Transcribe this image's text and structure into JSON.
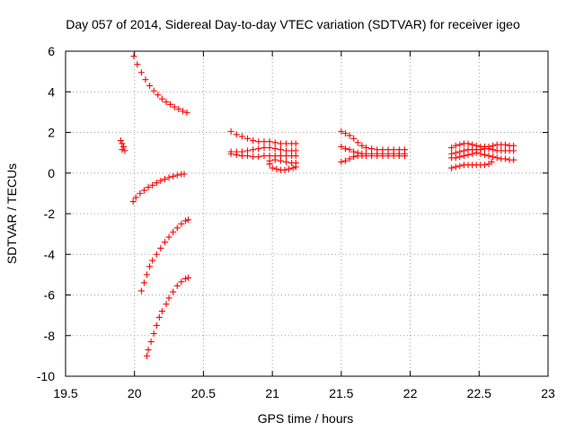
{
  "chart_data": {
    "type": "scatter",
    "title": "Day 057 of 2014, Sidereal Day-to-day VTEC variation (SDTVAR) for receiver igeo",
    "xlabel": "GPS time / hours",
    "ylabel": "SDTVAR / TECUs",
    "xlim": [
      19.5,
      23
    ],
    "ylim": [
      -10,
      6
    ],
    "xticks": [
      19.5,
      20,
      20.5,
      21,
      21.5,
      22,
      22.5,
      23
    ],
    "xtick_labels": [
      "19.5",
      "20",
      "20.5",
      "21",
      "21.5",
      "22",
      "22.5",
      "23"
    ],
    "yticks": [
      -10,
      -8,
      -6,
      -4,
      -2,
      0,
      2,
      4,
      6
    ],
    "ytick_labels": [
      "-10",
      "-8",
      "-6",
      "-4",
      "-2",
      "0",
      "2",
      "4",
      "6"
    ],
    "grid": true,
    "marker": "+",
    "series_color": "#ff0000",
    "series": [
      {
        "name": "arc-upper-20",
        "points": [
          [
            19.995,
            5.75
          ],
          [
            20.02,
            5.35
          ],
          [
            20.05,
            4.95
          ],
          [
            20.08,
            4.6
          ],
          [
            20.11,
            4.3
          ],
          [
            20.14,
            4.05
          ],
          [
            20.17,
            3.85
          ],
          [
            20.2,
            3.65
          ],
          [
            20.23,
            3.5
          ],
          [
            20.26,
            3.38
          ],
          [
            20.29,
            3.25
          ],
          [
            20.32,
            3.15
          ],
          [
            20.35,
            3.05
          ],
          [
            20.38,
            2.98
          ]
        ]
      },
      {
        "name": "short-19.9",
        "points": [
          [
            19.9,
            1.6
          ],
          [
            19.91,
            1.45
          ],
          [
            19.92,
            1.3
          ],
          [
            19.91,
            1.15
          ],
          [
            19.93,
            1.1
          ]
        ]
      },
      {
        "name": "arc-minus1",
        "points": [
          [
            19.99,
            -1.4
          ],
          [
            20.01,
            -1.2
          ],
          [
            20.04,
            -1.0
          ],
          [
            20.07,
            -0.85
          ],
          [
            20.1,
            -0.7
          ],
          [
            20.13,
            -0.6
          ],
          [
            20.16,
            -0.48
          ],
          [
            20.19,
            -0.38
          ],
          [
            20.22,
            -0.3
          ],
          [
            20.25,
            -0.22
          ],
          [
            20.28,
            -0.16
          ],
          [
            20.31,
            -0.1
          ],
          [
            20.34,
            -0.05
          ],
          [
            20.36,
            -0.05
          ]
        ]
      },
      {
        "name": "arc-minus4",
        "points": [
          [
            20.05,
            -5.8
          ],
          [
            20.07,
            -5.4
          ],
          [
            20.09,
            -5.0
          ],
          [
            20.11,
            -4.6
          ],
          [
            20.13,
            -4.3
          ],
          [
            20.16,
            -4.0
          ],
          [
            20.19,
            -3.7
          ],
          [
            20.22,
            -3.4
          ],
          [
            20.25,
            -3.15
          ],
          [
            20.28,
            -2.9
          ],
          [
            20.31,
            -2.7
          ],
          [
            20.34,
            -2.5
          ],
          [
            20.37,
            -2.35
          ],
          [
            20.39,
            -2.3
          ]
        ]
      },
      {
        "name": "arc-minus7",
        "points": [
          [
            20.09,
            -9.0
          ],
          [
            20.1,
            -8.7
          ],
          [
            20.12,
            -8.3
          ],
          [
            20.14,
            -7.9
          ],
          [
            20.16,
            -7.5
          ],
          [
            20.18,
            -7.1
          ],
          [
            20.2,
            -6.8
          ],
          [
            20.23,
            -6.45
          ],
          [
            20.25,
            -6.15
          ],
          [
            20.28,
            -5.85
          ],
          [
            20.31,
            -5.55
          ],
          [
            20.34,
            -5.35
          ],
          [
            20.37,
            -5.2
          ],
          [
            20.39,
            -5.15
          ]
        ]
      },
      {
        "name": "block-21-top",
        "points": [
          [
            20.7,
            2.05
          ],
          [
            20.74,
            1.9
          ],
          [
            20.78,
            1.8
          ],
          [
            20.82,
            1.7
          ],
          [
            20.86,
            1.6
          ],
          [
            20.9,
            1.55
          ],
          [
            20.94,
            1.55
          ],
          [
            20.98,
            1.55
          ],
          [
            21.02,
            1.5
          ],
          [
            21.06,
            1.45
          ],
          [
            21.1,
            1.45
          ],
          [
            21.14,
            1.45
          ],
          [
            21.17,
            1.45
          ]
        ]
      },
      {
        "name": "block-21-upper-mid",
        "points": [
          [
            20.7,
            1.05
          ],
          [
            20.74,
            1.05
          ],
          [
            20.78,
            1.05
          ],
          [
            20.82,
            1.1
          ],
          [
            20.86,
            1.15
          ],
          [
            20.9,
            1.2
          ],
          [
            20.94,
            1.25
          ],
          [
            20.98,
            1.25
          ],
          [
            21.02,
            1.2
          ],
          [
            21.06,
            1.15
          ],
          [
            21.1,
            1.1
          ],
          [
            21.14,
            1.1
          ],
          [
            21.17,
            1.1
          ]
        ]
      },
      {
        "name": "block-21-mid",
        "points": [
          [
            20.7,
            0.95
          ],
          [
            20.74,
            0.9
          ],
          [
            20.78,
            0.85
          ],
          [
            20.82,
            0.85
          ],
          [
            20.86,
            0.8
          ],
          [
            20.9,
            0.8
          ],
          [
            20.94,
            0.85
          ],
          [
            20.98,
            0.85
          ],
          [
            21.02,
            0.85
          ],
          [
            21.06,
            0.85
          ],
          [
            21.1,
            0.85
          ],
          [
            21.14,
            0.85
          ],
          [
            21.17,
            0.85
          ]
        ]
      },
      {
        "name": "block-21-lower",
        "points": [
          [
            20.98,
            0.45
          ],
          [
            21.0,
            0.25
          ],
          [
            21.03,
            0.2
          ],
          [
            21.06,
            0.15
          ],
          [
            21.09,
            0.15
          ],
          [
            21.12,
            0.2
          ],
          [
            21.15,
            0.25
          ],
          [
            21.17,
            0.3
          ]
        ]
      },
      {
        "name": "block-21-low-mid",
        "points": [
          [
            20.98,
            0.6
          ],
          [
            21.02,
            0.65
          ],
          [
            21.06,
            0.6
          ],
          [
            21.1,
            0.55
          ],
          [
            21.14,
            0.5
          ],
          [
            21.17,
            0.5
          ]
        ]
      },
      {
        "name": "block-21.7-top",
        "points": [
          [
            21.5,
            2.05
          ],
          [
            21.53,
            1.95
          ],
          [
            21.56,
            1.85
          ],
          [
            21.59,
            1.7
          ],
          [
            21.62,
            1.5
          ],
          [
            21.65,
            1.35
          ],
          [
            21.68,
            1.25
          ],
          [
            21.72,
            1.2
          ],
          [
            21.76,
            1.15
          ],
          [
            21.8,
            1.15
          ],
          [
            21.84,
            1.15
          ],
          [
            21.88,
            1.15
          ],
          [
            21.92,
            1.15
          ],
          [
            21.96,
            1.15
          ]
        ]
      },
      {
        "name": "block-21.7-mid",
        "points": [
          [
            21.5,
            1.3
          ],
          [
            21.53,
            1.2
          ],
          [
            21.56,
            1.15
          ],
          [
            21.59,
            1.05
          ],
          [
            21.62,
            1.0
          ],
          [
            21.65,
            0.95
          ],
          [
            21.68,
            0.95
          ],
          [
            21.72,
            0.95
          ],
          [
            21.76,
            0.95
          ],
          [
            21.8,
            0.95
          ],
          [
            21.84,
            0.95
          ],
          [
            21.88,
            0.95
          ],
          [
            21.92,
            0.95
          ],
          [
            21.96,
            0.95
          ]
        ]
      },
      {
        "name": "block-21.7-low",
        "points": [
          [
            21.5,
            0.55
          ],
          [
            21.53,
            0.6
          ],
          [
            21.56,
            0.7
          ],
          [
            21.59,
            0.8
          ],
          [
            21.62,
            0.85
          ],
          [
            21.65,
            0.85
          ],
          [
            21.68,
            0.85
          ],
          [
            21.72,
            0.85
          ],
          [
            21.76,
            0.85
          ],
          [
            21.8,
            0.85
          ],
          [
            21.84,
            0.85
          ],
          [
            21.88,
            0.85
          ],
          [
            21.92,
            0.85
          ],
          [
            21.96,
            0.85
          ]
        ]
      },
      {
        "name": "block-22.5-top",
        "points": [
          [
            22.3,
            1.25
          ],
          [
            22.33,
            1.35
          ],
          [
            22.36,
            1.4
          ],
          [
            22.39,
            1.45
          ],
          [
            22.42,
            1.45
          ],
          [
            22.45,
            1.4
          ],
          [
            22.48,
            1.35
          ],
          [
            22.51,
            1.3
          ],
          [
            22.54,
            1.3
          ],
          [
            22.57,
            1.3
          ],
          [
            22.6,
            1.35
          ],
          [
            22.63,
            1.4
          ],
          [
            22.66,
            1.4
          ],
          [
            22.69,
            1.4
          ],
          [
            22.72,
            1.35
          ],
          [
            22.75,
            1.35
          ]
        ]
      },
      {
        "name": "block-22.5-mid",
        "points": [
          [
            22.3,
            0.95
          ],
          [
            22.33,
            1.0
          ],
          [
            22.36,
            1.05
          ],
          [
            22.39,
            1.1
          ],
          [
            22.42,
            1.15
          ],
          [
            22.45,
            1.15
          ],
          [
            22.48,
            1.15
          ],
          [
            22.51,
            1.15
          ],
          [
            22.54,
            1.2
          ],
          [
            22.57,
            1.2
          ],
          [
            22.6,
            1.15
          ],
          [
            22.63,
            1.1
          ],
          [
            22.66,
            1.1
          ],
          [
            22.69,
            1.1
          ],
          [
            22.72,
            1.1
          ],
          [
            22.75,
            1.1
          ]
        ]
      },
      {
        "name": "block-22.5-lowmid",
        "points": [
          [
            22.3,
            0.75
          ],
          [
            22.33,
            0.75
          ],
          [
            22.36,
            0.8
          ],
          [
            22.39,
            0.85
          ],
          [
            22.42,
            0.9
          ],
          [
            22.45,
            0.95
          ],
          [
            22.48,
            1.0
          ],
          [
            22.51,
            0.95
          ],
          [
            22.54,
            0.9
          ],
          [
            22.57,
            0.85
          ],
          [
            22.6,
            0.8
          ],
          [
            22.63,
            0.75
          ],
          [
            22.66,
            0.7
          ],
          [
            22.69,
            0.7
          ],
          [
            22.72,
            0.65
          ],
          [
            22.75,
            0.65
          ]
        ]
      },
      {
        "name": "block-22.5-low",
        "points": [
          [
            22.3,
            0.25
          ],
          [
            22.33,
            0.3
          ],
          [
            22.36,
            0.35
          ],
          [
            22.39,
            0.4
          ],
          [
            22.42,
            0.4
          ],
          [
            22.45,
            0.4
          ],
          [
            22.48,
            0.4
          ],
          [
            22.51,
            0.4
          ],
          [
            22.54,
            0.4
          ],
          [
            22.57,
            0.45
          ],
          [
            22.59,
            0.55
          ]
        ]
      }
    ]
  }
}
